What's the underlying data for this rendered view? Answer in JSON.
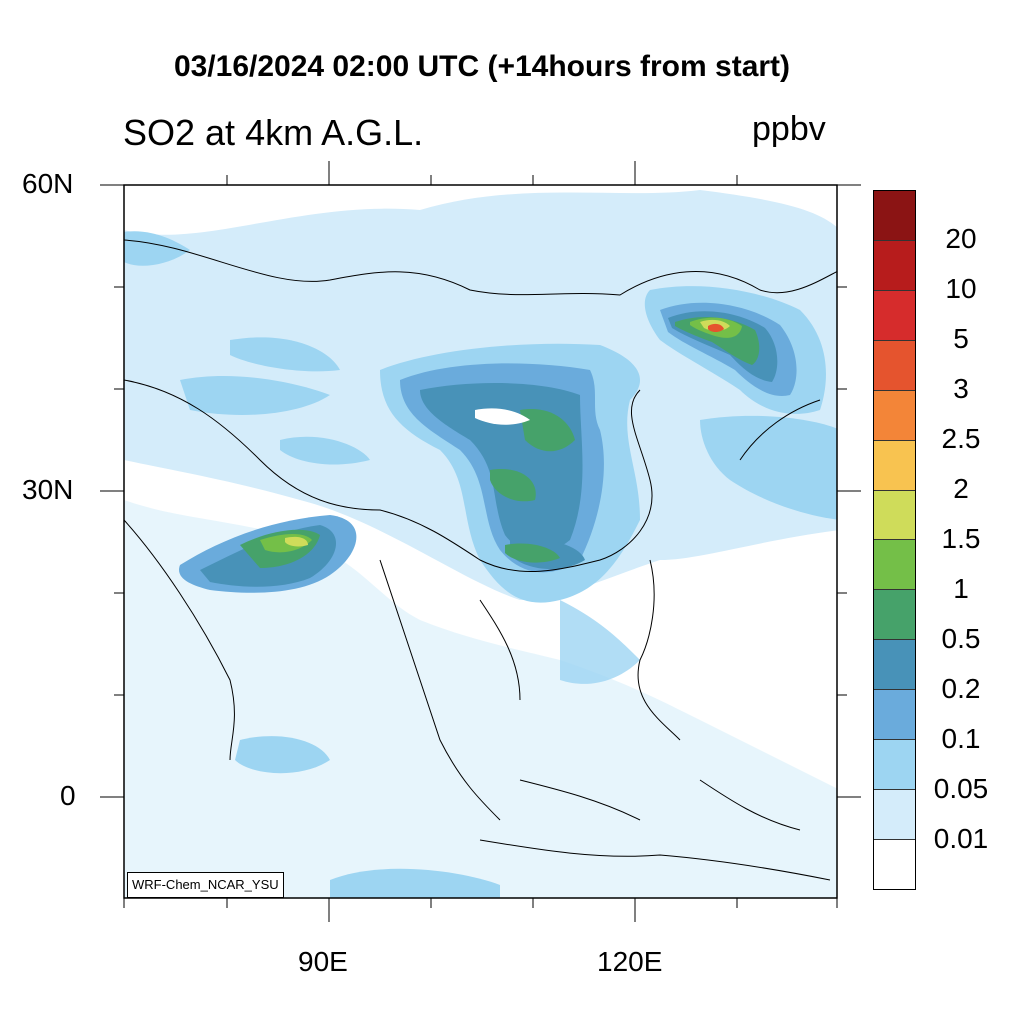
{
  "figure": {
    "title": "03/16/2024 02:00 UTC (+14hours from start)",
    "subtitle": "SO2 at 4km A.G.L.",
    "units": "ppbv",
    "credit": "WRF-Chem_NCAR_YSU"
  },
  "axes": {
    "lat_labels": [
      "60N",
      "30N",
      "0"
    ],
    "lon_labels": [
      "90E",
      "120E"
    ]
  },
  "colorbar": {
    "levels": [
      "0.01",
      "0.05",
      "0.1",
      "0.2",
      "0.5",
      "1",
      "1.5",
      "2",
      "2.5",
      "3",
      "5",
      "10",
      "20"
    ],
    "colors": [
      "#ffffff",
      "#d4ecfa",
      "#9dd5f2",
      "#6aabdc",
      "#4892b8",
      "#46a26a",
      "#74bf48",
      "#cfdc5a",
      "#f8c350",
      "#f38538",
      "#e5542e",
      "#d62c2c",
      "#b71c1c",
      "#8b1414"
    ]
  }
}
